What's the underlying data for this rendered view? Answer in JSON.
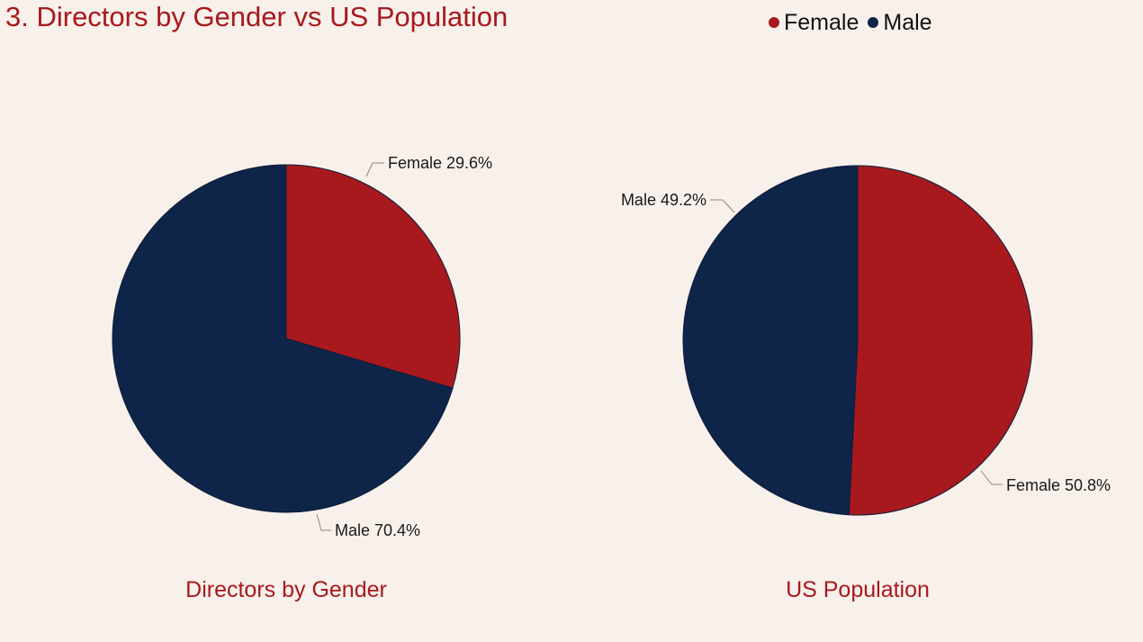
{
  "page_title": "3. Directors by Gender vs US Population",
  "colors": {
    "female": "#a8191e",
    "male": "#0e2549",
    "accent": "#a8191e",
    "background": "#f8f0ea"
  },
  "legend": [
    {
      "name": "Female",
      "color": "#a8191e"
    },
    {
      "name": "Male",
      "color": "#0e2549"
    }
  ],
  "chart_data": [
    {
      "type": "pie",
      "title": "Directors by Gender",
      "slices": [
        {
          "name": "Female",
          "value": 29.6,
          "label": "Female 29.6%"
        },
        {
          "name": "Male",
          "value": 70.4,
          "label": "Male 70.4%"
        }
      ]
    },
    {
      "type": "pie",
      "title": "US Population",
      "slices": [
        {
          "name": "Female",
          "value": 50.8,
          "label": "Female 50.8%"
        },
        {
          "name": "Male",
          "value": 49.2,
          "label": "Male 49.2%"
        }
      ]
    }
  ]
}
